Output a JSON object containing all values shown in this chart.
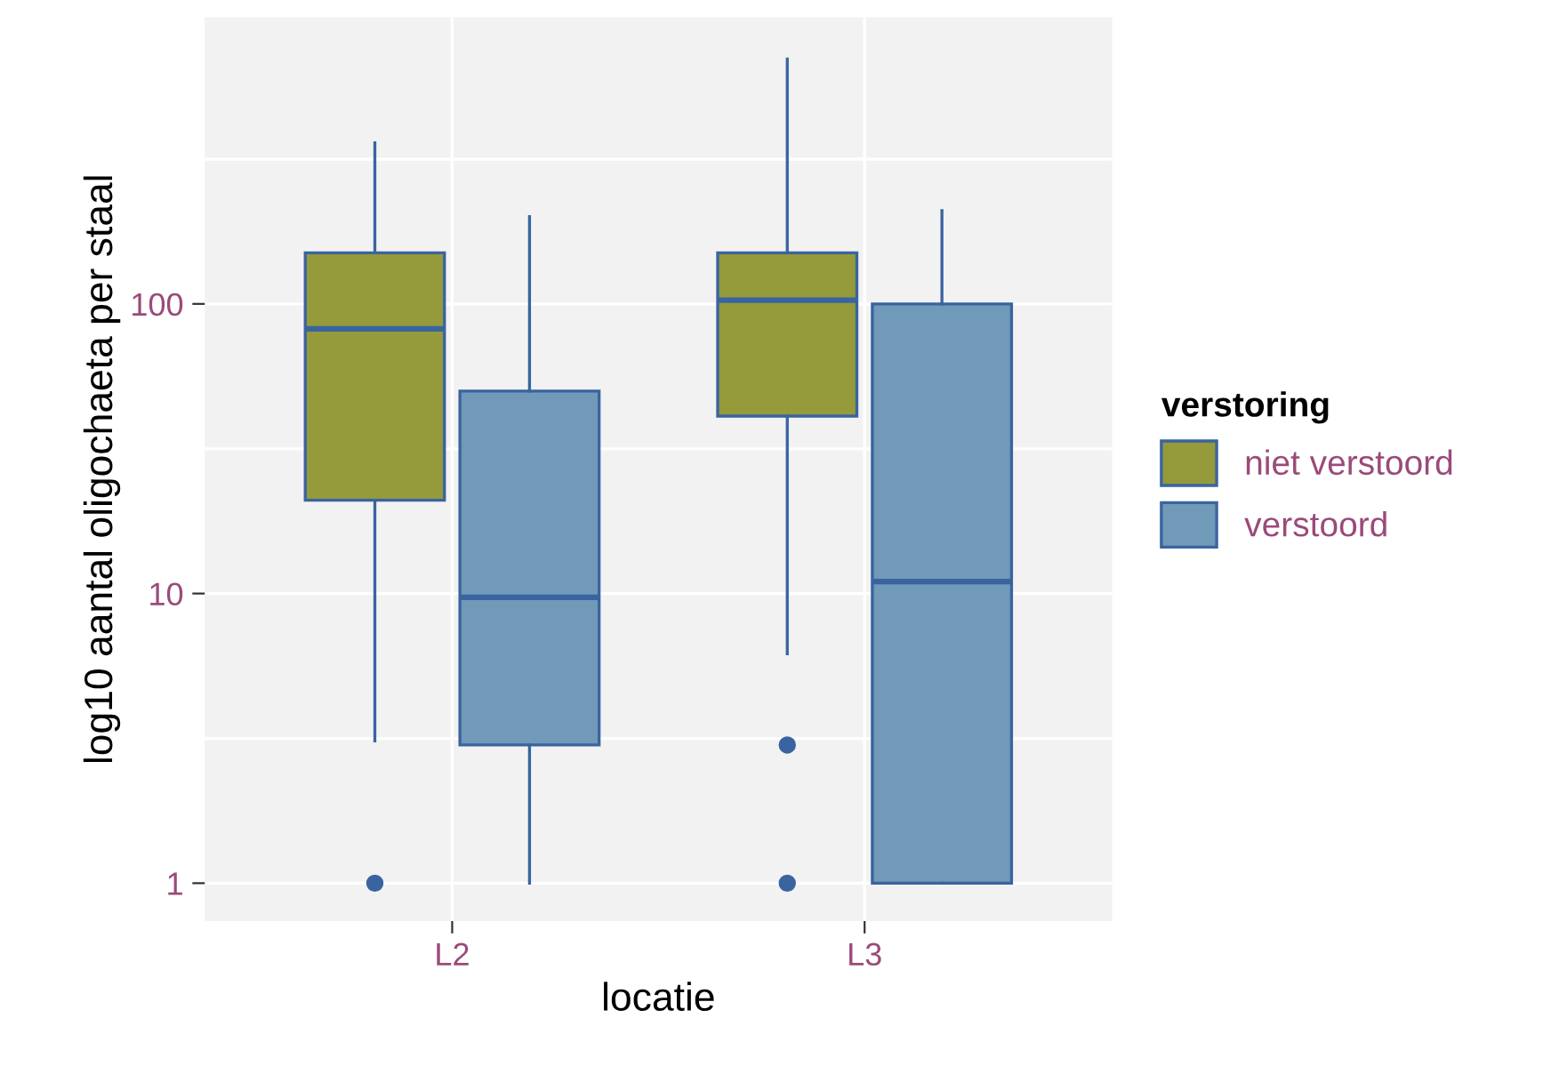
{
  "chart_data": {
    "type": "box",
    "xlabel": "locatie",
    "ylabel": "log10 aantal oligochaeta per staal",
    "legend_title": "verstoring",
    "categories": [
      "L2",
      "L3"
    ],
    "series": [
      {
        "name": "niet verstoord",
        "color": "#959a3a",
        "boxes": [
          {
            "low": 3.1,
            "q1": 21,
            "median": 82,
            "q3": 150,
            "high": 360,
            "outliers": [
              1
            ]
          },
          {
            "low": 6.2,
            "q1": 41,
            "median": 103,
            "q3": 150,
            "high": 700,
            "outliers": [
              3,
              1
            ]
          }
        ]
      },
      {
        "name": "verstoord",
        "color": "#7199b8",
        "boxes": [
          {
            "low": 1,
            "q1": 3,
            "median": 9.7,
            "q3": 50,
            "high": 200
          },
          {
            "low": 1,
            "q1": 1,
            "median": 11,
            "q3": 100,
            "high": 210
          }
        ]
      }
    ],
    "log": "y",
    "ylim": [
      0.74,
      975
    ],
    "yticks": [
      1,
      {
        "value": 3.16,
        "label": null
      },
      10,
      {
        "value": 31.6,
        "label": null
      },
      100,
      {
        "value": 316,
        "label": null
      }
    ],
    "grid": true,
    "legend": "right"
  }
}
